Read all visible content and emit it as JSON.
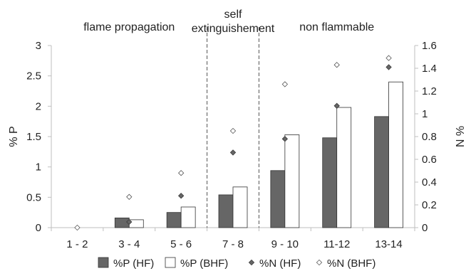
{
  "chart_data": {
    "type": "bar",
    "categories": [
      "1 - 2",
      "3 - 4",
      "5 - 6",
      "7 - 8",
      "9 - 10",
      "11-12",
      "13-14"
    ],
    "series": [
      {
        "name": "%P (HF)",
        "kind": "bar",
        "axis": "left",
        "color": "#666666",
        "values": [
          0,
          0.16,
          0.25,
          0.54,
          0.94,
          1.48,
          1.83
        ]
      },
      {
        "name": "%P (BHF)",
        "kind": "bar",
        "axis": "left",
        "color": "#ffffff",
        "values": [
          0,
          0.13,
          0.34,
          0.67,
          1.53,
          1.98,
          2.4
        ]
      },
      {
        "name": "%N (HF)",
        "kind": "marker",
        "axis": "right",
        "color": "#666666",
        "values": [
          null,
          0.05,
          0.28,
          0.66,
          0.78,
          1.07,
          1.41
        ]
      },
      {
        "name": "%N (BHF)",
        "kind": "marker",
        "axis": "right",
        "color": "#ffffff",
        "values": [
          0.0,
          0.27,
          0.48,
          0.85,
          1.26,
          1.43,
          1.49
        ]
      }
    ],
    "ylabel": "% P",
    "y2label": "% N",
    "ylim": [
      0,
      3
    ],
    "y2lim": [
      0,
      1.6
    ],
    "yticks": [
      "0",
      "0.5",
      "1",
      "1.5",
      "2",
      "2.5",
      "3"
    ],
    "y2ticks": [
      "0",
      "0.2",
      "0.4",
      "0.6",
      "0.8",
      "1",
      "1.2",
      "1.4",
      "1.6"
    ],
    "regions": [
      {
        "lines": [
          "flame propagation"
        ],
        "from": 0,
        "to": 2
      },
      {
        "lines": [
          "self",
          "extinguishement"
        ],
        "from": 3,
        "to": 3
      },
      {
        "lines": [
          "non flammable"
        ],
        "from": 4,
        "to": 6
      }
    ],
    "dividers_after_category": [
      2,
      3
    ],
    "legend_position": "bottom",
    "grid": false
  }
}
